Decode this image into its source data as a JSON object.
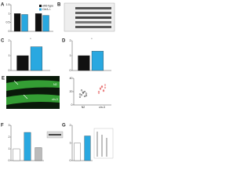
{
  "chart_data": [
    {
      "type": "bar",
      "panel": "A",
      "categories": [
        null,
        null
      ],
      "series": [
        {
          "name": "wild-type",
          "color": "#111111",
          "values": [
            1,
            1
          ]
        },
        {
          "name": "Cln3-/-",
          "color": "#29a8e0",
          "values": [
            0.95,
            0.9
          ]
        }
      ],
      "ylim": [
        0,
        1.5
      ],
      "yticks": [
        0,
        0.5,
        1,
        1.5
      ],
      "legend": "upper right"
    },
    {
      "type": "bar",
      "panel": "C",
      "categories": [
        null
      ],
      "series": [
        {
          "color": "#111111",
          "values": [
            1
          ]
        },
        {
          "color": "#29a8e0",
          "values": [
            1.6
          ]
        }
      ],
      "ylim": [
        0,
        2
      ],
      "yticks": [
        0,
        1,
        2
      ],
      "annotation": "*"
    },
    {
      "type": "bar",
      "panel": "D",
      "categories": [
        null
      ],
      "series": [
        {
          "color": "#111111",
          "values": [
            1
          ]
        },
        {
          "color": "#29a8e0",
          "values": [
            1.3
          ]
        }
      ],
      "ylim": [
        0,
        2
      ],
      "yticks": [
        0,
        1,
        2
      ],
      "annotation": "*"
    },
    {
      "type": "scatter",
      "categories": [
        "N2",
        "cln-3"
      ],
      "series": [
        {
          "color": "#222222",
          "values": [
            12,
            15,
            18,
            20,
            14,
            16,
            22,
            19,
            13,
            17
          ]
        },
        {
          "color": "#dd3333",
          "values": [
            20,
            24,
            27,
            22,
            30,
            18,
            25,
            28,
            21,
            26
          ]
        }
      ],
      "ylim": [
        0,
        40
      ],
      "yticks": [
        0,
        20,
        40
      ]
    },
    {
      "type": "bar",
      "panel": "F",
      "values": [
        1,
        2.4,
        1.1
      ],
      "colors": [
        "#ffffff",
        "#29a8e0",
        "#bbbbbb"
      ],
      "ylim": [
        0,
        3
      ],
      "yticks": [
        0,
        1,
        2,
        3
      ]
    },
    {
      "type": "bar",
      "panel": "G",
      "values": [
        1,
        1.4
      ],
      "colors": [
        "#ffffff",
        "#29a8e0"
      ],
      "ylim": [
        0,
        2
      ],
      "yticks": [
        0,
        1,
        2
      ]
    }
  ],
  "images": [
    {
      "panel": "B"
    },
    {
      "panel": "E",
      "labels": [
        "N2",
        "cln-3"
      ]
    }
  ]
}
